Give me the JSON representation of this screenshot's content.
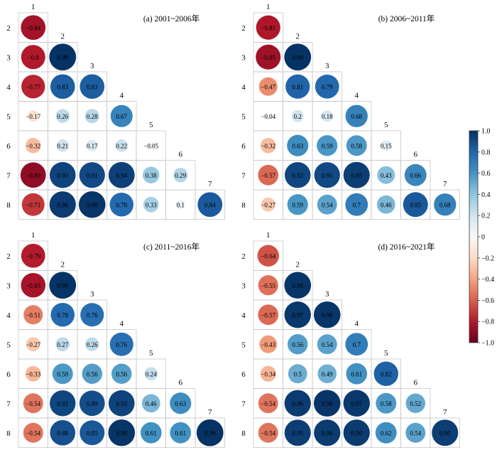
{
  "chart_data": {
    "type": "heatmap",
    "colorbar": {
      "min": -1.0,
      "max": 1.0,
      "ticks": [
        "1.0",
        "0.8",
        "0.6",
        "0.4",
        "0.2",
        "0",
        "−0.2",
        "−0.4",
        "−0.6",
        "−0.8",
        "−1.0"
      ],
      "colors": [
        "#67001f",
        "#b2182b",
        "#d6604d",
        "#f4a582",
        "#fddbc7",
        "#f7f7f7",
        "#d1e5f0",
        "#92c5de",
        "#4393c3",
        "#2166ac",
        "#053061"
      ]
    },
    "panels": [
      {
        "title": "(a) 2001~2006年",
        "row_labels": [
          "2",
          "3",
          "4",
          "5",
          "6",
          "7",
          "8"
        ],
        "col_labels": [
          "1",
          "2",
          "3",
          "4",
          "5",
          "6",
          "7"
        ],
        "rows": [
          [
            -0.84
          ],
          [
            -0.8,
            0.99
          ],
          [
            -0.77,
            0.83,
            0.83
          ],
          [
            -0.17,
            0.26,
            0.28,
            0.67
          ],
          [
            -0.32,
            0.21,
            0.17,
            0.22,
            -0.05
          ],
          [
            -0.89,
            0.93,
            0.91,
            0.94,
            0.38,
            0.29
          ],
          [
            -0.71,
            0.96,
            0.98,
            0.78,
            0.33,
            0.1,
            0.84
          ]
        ]
      },
      {
        "title": "(b) 2006~2011年",
        "row_labels": [
          "2",
          "3",
          "4",
          "5",
          "6",
          "7",
          "8"
        ],
        "col_labels": [
          "1",
          "2",
          "3",
          "4",
          "5",
          "6",
          "7"
        ],
        "rows": [
          [
            -0.81
          ],
          [
            -0.85,
            0.99
          ],
          [
            -0.47,
            0.81,
            0.79
          ],
          [
            -0.04,
            0.2,
            0.18,
            0.68
          ],
          [
            -0.32,
            0.63,
            0.59,
            0.58,
            0.15
          ],
          [
            -0.57,
            0.92,
            0.91,
            0.95,
            0.43,
            0.66
          ],
          [
            -0.27,
            0.59,
            0.54,
            0.7,
            0.46,
            0.85,
            0.68
          ]
        ]
      },
      {
        "title": "(c) 2011~2016年",
        "row_labels": [
          "2",
          "3",
          "4",
          "5",
          "6",
          "7",
          "8"
        ],
        "col_labels": [
          "1",
          "2",
          "3",
          "4",
          "5",
          "6",
          "7"
        ],
        "rows": [
          [
            -0.79
          ],
          [
            -0.83,
            0.99
          ],
          [
            -0.51,
            0.78,
            0.76
          ],
          [
            -0.27,
            0.27,
            0.26,
            0.76
          ],
          [
            -0.33,
            0.58,
            0.56,
            0.56,
            0.24
          ],
          [
            -0.54,
            0.92,
            0.89,
            0.93,
            0.46,
            0.63
          ],
          [
            -0.54,
            0.88,
            0.85,
            0.98,
            0.61,
            0.61,
            0.99
          ]
        ]
      },
      {
        "title": "(d) 2016~2021年",
        "row_labels": [
          "2",
          "3",
          "4",
          "5",
          "6",
          "7",
          "8"
        ],
        "col_labels": [
          "1",
          "2",
          "3",
          "4",
          "5",
          "6",
          "7"
        ],
        "rows": [
          [
            -0.64
          ],
          [
            -0.55,
            0.98
          ],
          [
            -0.57,
            0.97,
            0.98
          ],
          [
            -0.43,
            0.56,
            0.54,
            0.7
          ],
          [
            -0.34,
            0.5,
            0.49,
            0.61,
            0.82
          ],
          [
            -0.54,
            0.96,
            0.98,
            0.97,
            0.58,
            0.52
          ],
          [
            -0.54,
            0.95,
            0.96,
            0.96,
            0.62,
            0.54,
            0.95
          ]
        ]
      }
    ]
  }
}
